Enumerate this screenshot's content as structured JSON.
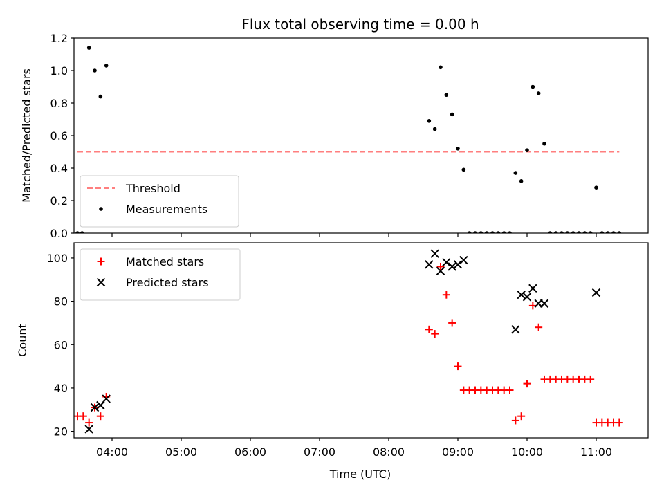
{
  "chart_data": [
    {
      "type": "scatter",
      "title": "Flux total observing time = 0.00 h",
      "xlabel": "",
      "ylabel": "Matched/Predicted stars",
      "xlim": [
        "03:27",
        "11:45"
      ],
      "ylim": [
        0,
        1.2
      ],
      "yticks": [
        "0.0",
        "0.2",
        "0.4",
        "0.6",
        "0.8",
        "1.0",
        "1.2"
      ],
      "grid": false,
      "legend_position": "lower-left",
      "series": [
        {
          "name": "Threshold",
          "kind": "line",
          "color": "#ff7f7f",
          "style": "dashed",
          "points": [
            {
              "x": "03:30",
              "y": 0.5
            },
            {
              "x": "11:20",
              "y": 0.5
            }
          ]
        },
        {
          "name": "Measurements",
          "kind": "scatter",
          "color": "#000000",
          "marker": "dot",
          "points": [
            {
              "x": "03:30",
              "y": 0.0
            },
            {
              "x": "03:34",
              "y": 0.0
            },
            {
              "x": "03:40",
              "y": 1.14
            },
            {
              "x": "03:45",
              "y": 1.0
            },
            {
              "x": "03:50",
              "y": 0.84
            },
            {
              "x": "03:55",
              "y": 1.03
            },
            {
              "x": "08:35",
              "y": 0.69
            },
            {
              "x": "08:40",
              "y": 0.64
            },
            {
              "x": "08:45",
              "y": 1.02
            },
            {
              "x": "08:50",
              "y": 0.85
            },
            {
              "x": "08:55",
              "y": 0.73
            },
            {
              "x": "09:00",
              "y": 0.52
            },
            {
              "x": "09:05",
              "y": 0.39
            },
            {
              "x": "09:10",
              "y": 0.0
            },
            {
              "x": "09:15",
              "y": 0.0
            },
            {
              "x": "09:20",
              "y": 0.0
            },
            {
              "x": "09:25",
              "y": 0.0
            },
            {
              "x": "09:30",
              "y": 0.0
            },
            {
              "x": "09:35",
              "y": 0.0
            },
            {
              "x": "09:40",
              "y": 0.0
            },
            {
              "x": "09:45",
              "y": 0.0
            },
            {
              "x": "09:50",
              "y": 0.37
            },
            {
              "x": "09:55",
              "y": 0.32
            },
            {
              "x": "10:00",
              "y": 0.51
            },
            {
              "x": "10:05",
              "y": 0.9
            },
            {
              "x": "10:10",
              "y": 0.86
            },
            {
              "x": "10:15",
              "y": 0.55
            },
            {
              "x": "10:20",
              "y": 0.0
            },
            {
              "x": "10:25",
              "y": 0.0
            },
            {
              "x": "10:30",
              "y": 0.0
            },
            {
              "x": "10:35",
              "y": 0.0
            },
            {
              "x": "10:40",
              "y": 0.0
            },
            {
              "x": "10:45",
              "y": 0.0
            },
            {
              "x": "10:50",
              "y": 0.0
            },
            {
              "x": "10:55",
              "y": 0.0
            },
            {
              "x": "11:00",
              "y": 0.28
            },
            {
              "x": "11:05",
              "y": 0.0
            },
            {
              "x": "11:10",
              "y": 0.0
            },
            {
              "x": "11:15",
              "y": 0.0
            },
            {
              "x": "11:20",
              "y": 0.0
            }
          ]
        }
      ]
    },
    {
      "type": "scatter",
      "title": "",
      "xlabel": "Time (UTC)",
      "ylabel": "Count",
      "xlim": [
        "03:27",
        "11:45"
      ],
      "ylim": [
        17,
        107
      ],
      "yticks": [
        "20",
        "40",
        "60",
        "80",
        "100"
      ],
      "xticks": [
        "04:00",
        "05:00",
        "06:00",
        "07:00",
        "08:00",
        "09:00",
        "10:00",
        "11:00"
      ],
      "grid": false,
      "legend_position": "upper-left",
      "series": [
        {
          "name": "Matched stars",
          "kind": "scatter",
          "color": "#ff0000",
          "marker": "plus",
          "points": [
            {
              "x": "03:30",
              "y": 27
            },
            {
              "x": "03:35",
              "y": 27
            },
            {
              "x": "03:40",
              "y": 24
            },
            {
              "x": "03:45",
              "y": 31
            },
            {
              "x": "03:50",
              "y": 27
            },
            {
              "x": "03:55",
              "y": 36
            },
            {
              "x": "08:35",
              "y": 67
            },
            {
              "x": "08:40",
              "y": 65
            },
            {
              "x": "08:45",
              "y": 96
            },
            {
              "x": "08:50",
              "y": 83
            },
            {
              "x": "08:55",
              "y": 70
            },
            {
              "x": "09:00",
              "y": 50
            },
            {
              "x": "09:05",
              "y": 39
            },
            {
              "x": "09:10",
              "y": 39
            },
            {
              "x": "09:15",
              "y": 39
            },
            {
              "x": "09:20",
              "y": 39
            },
            {
              "x": "09:25",
              "y": 39
            },
            {
              "x": "09:30",
              "y": 39
            },
            {
              "x": "09:35",
              "y": 39
            },
            {
              "x": "09:40",
              "y": 39
            },
            {
              "x": "09:45",
              "y": 39
            },
            {
              "x": "09:50",
              "y": 25
            },
            {
              "x": "09:55",
              "y": 27
            },
            {
              "x": "10:00",
              "y": 42
            },
            {
              "x": "10:05",
              "y": 78
            },
            {
              "x": "10:10",
              "y": 68
            },
            {
              "x": "10:15",
              "y": 44
            },
            {
              "x": "10:20",
              "y": 44
            },
            {
              "x": "10:25",
              "y": 44
            },
            {
              "x": "10:30",
              "y": 44
            },
            {
              "x": "10:35",
              "y": 44
            },
            {
              "x": "10:40",
              "y": 44
            },
            {
              "x": "10:45",
              "y": 44
            },
            {
              "x": "10:50",
              "y": 44
            },
            {
              "x": "10:55",
              "y": 44
            },
            {
              "x": "11:00",
              "y": 24
            },
            {
              "x": "11:05",
              "y": 24
            },
            {
              "x": "11:10",
              "y": 24
            },
            {
              "x": "11:15",
              "y": 24
            },
            {
              "x": "11:20",
              "y": 24
            }
          ]
        },
        {
          "name": "Predicted stars",
          "kind": "scatter",
          "color": "#000000",
          "marker": "x",
          "points": [
            {
              "x": "03:40",
              "y": 21
            },
            {
              "x": "03:45",
              "y": 31
            },
            {
              "x": "03:50",
              "y": 32
            },
            {
              "x": "03:55",
              "y": 35
            },
            {
              "x": "08:35",
              "y": 97
            },
            {
              "x": "08:40",
              "y": 102
            },
            {
              "x": "08:45",
              "y": 94
            },
            {
              "x": "08:50",
              "y": 98
            },
            {
              "x": "08:55",
              "y": 96
            },
            {
              "x": "09:00",
              "y": 97
            },
            {
              "x": "09:05",
              "y": 99
            },
            {
              "x": "09:50",
              "y": 67
            },
            {
              "x": "09:55",
              "y": 83
            },
            {
              "x": "10:00",
              "y": 82
            },
            {
              "x": "10:05",
              "y": 86
            },
            {
              "x": "10:10",
              "y": 79
            },
            {
              "x": "10:15",
              "y": 79
            },
            {
              "x": "11:00",
              "y": 84
            }
          ]
        }
      ]
    }
  ]
}
